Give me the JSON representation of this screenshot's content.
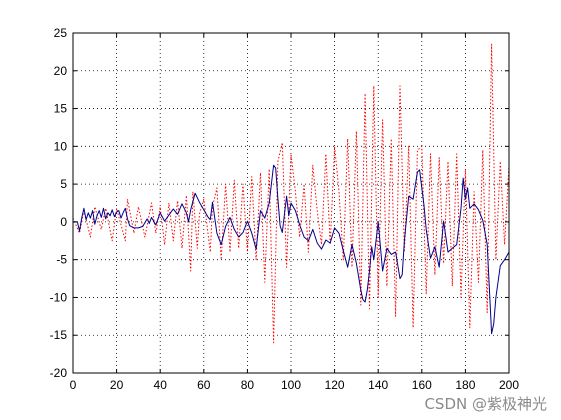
{
  "watermark": "CSDN @紫极神光",
  "chart_data": {
    "type": "line",
    "title": "",
    "xlabel": "",
    "ylabel": "",
    "xlim": [
      0,
      200
    ],
    "ylim": [
      -20,
      25
    ],
    "xticks": [
      0,
      20,
      40,
      60,
      80,
      100,
      120,
      140,
      160,
      180,
      200
    ],
    "yticks": [
      -20,
      -15,
      -10,
      -5,
      0,
      5,
      10,
      15,
      20,
      25
    ],
    "grid": true,
    "legend": "none",
    "series": [
      {
        "style": "solid",
        "color": "#00008b",
        "x": [
          0,
          2,
          3,
          4,
          5,
          6,
          7,
          8,
          9,
          10,
          11,
          12,
          13,
          14,
          15,
          16,
          17,
          18,
          19,
          20,
          21,
          22,
          23,
          24,
          25,
          26,
          28,
          30,
          32,
          34,
          35,
          36,
          38,
          40,
          42,
          44,
          46,
          48,
          50,
          52,
          53,
          54,
          56,
          57,
          58,
          60,
          62,
          63,
          64,
          66,
          68,
          70,
          72,
          74,
          76,
          78,
          80,
          82,
          84,
          86,
          88,
          90,
          92,
          93,
          94,
          95,
          96,
          98,
          99,
          100,
          102,
          104,
          106,
          108,
          110,
          112,
          114,
          116,
          118,
          120,
          122,
          124,
          126,
          128,
          130,
          132,
          133,
          134,
          135,
          136,
          137,
          138,
          140,
          142,
          144,
          146,
          148,
          150,
          151,
          152,
          154,
          156,
          158,
          159,
          160,
          161,
          162,
          164,
          166,
          168,
          170,
          172,
          174,
          176,
          178,
          179,
          180,
          181,
          182,
          184,
          186,
          188,
          190,
          192,
          193,
          194,
          196,
          198,
          200
        ],
        "y": [
          0,
          0,
          -1.2,
          0.5,
          1.8,
          0.3,
          1.2,
          0.5,
          1.5,
          -0.3,
          0.8,
          1.5,
          0.6,
          1.8,
          0.4,
          1.2,
          0.8,
          1.6,
          0.7,
          1.3,
          1.5,
          0.5,
          1.2,
          1.8,
          0.4,
          -0.5,
          -0.8,
          -0.8,
          -0.6,
          0.4,
          -0.2,
          0.6,
          -0.4,
          1.2,
          0.1,
          0.9,
          1.7,
          1.0,
          2.4,
          1.2,
          0.0,
          1.6,
          3.8,
          3.2,
          2.6,
          1.6,
          0.6,
          0.3,
          2.6,
          -1.5,
          -3.0,
          -0.6,
          0.6,
          -1.0,
          -2.0,
          -1.4,
          0.1,
          -1.5,
          -3.6,
          1.5,
          0.5,
          2.5,
          7.5,
          7.1,
          3.0,
          -0.5,
          -1.4,
          3.4,
          0.8,
          2.5,
          1.5,
          -0.4,
          -2.0,
          -2.5,
          -1.0,
          -2.8,
          -3.6,
          -2.4,
          -2.8,
          -0.8,
          -1.5,
          -3.8,
          -6.0,
          -3.0,
          -5.5,
          -9.0,
          -10.3,
          -10.6,
          -9.0,
          -6.5,
          -3.3,
          -5.0,
          0.0,
          -6.5,
          -3.5,
          -4.3,
          -4.0,
          -7.5,
          -7.0,
          -2.5,
          3.4,
          3.0,
          6.6,
          6.9,
          4.5,
          2.2,
          -1.0,
          -4.8,
          -3.3,
          -6.0,
          0.1,
          -4.0,
          -3.5,
          -3.0,
          1.8,
          5.8,
          3.0,
          4.5,
          1.8,
          2.4,
          1.6,
          0.2,
          -3.0,
          -14.8,
          -13.5,
          -10.0,
          -5.8,
          -5.0,
          -4.0
        ]
      },
      {
        "style": "dotted",
        "color": "#ff0000",
        "x": [
          0,
          3,
          5,
          8,
          10,
          13,
          15,
          18,
          20,
          24,
          25,
          28,
          30,
          33,
          36,
          38,
          40,
          42,
          44,
          46,
          48,
          50,
          52,
          54,
          55,
          57,
          58,
          60,
          63,
          64,
          66,
          68,
          70,
          72,
          74,
          76,
          78,
          80,
          82,
          84,
          86,
          88,
          90,
          92,
          94,
          96,
          98,
          100,
          102,
          104,
          106,
          108,
          110,
          112,
          114,
          116,
          118,
          120,
          122,
          124,
          126,
          128,
          130,
          132,
          134,
          136,
          138,
          140,
          142,
          144,
          146,
          148,
          150,
          152,
          154,
          156,
          158,
          160,
          162,
          164,
          166,
          168,
          170,
          172,
          174,
          176,
          178,
          180,
          182,
          184,
          186,
          188,
          190,
          192,
          194,
          196,
          198,
          200
        ],
        "y": [
          0.5,
          -1.5,
          1.5,
          -2.0,
          2.0,
          -1.0,
          1.8,
          -2.5,
          1.8,
          -2.5,
          3.0,
          -1.5,
          2.0,
          -2.0,
          2.5,
          -1.5,
          2.0,
          -3.0,
          2.5,
          -2.5,
          2.8,
          -3.5,
          3.5,
          -6.5,
          4.0,
          -3.5,
          1.0,
          3.0,
          -4.0,
          2.0,
          4.5,
          -5.0,
          5.0,
          -4.0,
          5.5,
          -3.5,
          5.0,
          -4.0,
          6.0,
          -5.0,
          6.5,
          -8.0,
          7.0,
          -16.0,
          8.0,
          10.5,
          -6.0,
          9.0,
          4.0,
          -2.0,
          5.0,
          -4.0,
          7.5,
          1.5,
          -3.0,
          9.0,
          -3.0,
          10.0,
          4.0,
          -5.0,
          11.0,
          -6.0,
          12.0,
          -11.0,
          17.0,
          -11.5,
          18.0,
          -10.0,
          13.5,
          -8.5,
          11.0,
          -12.5,
          18.0,
          -4.0,
          10.0,
          -14.0,
          9.5,
          10.0,
          -9.5,
          9.0,
          -7.0,
          8.5,
          -5.5,
          8.0,
          -8.5,
          9.0,
          -10.0,
          7.0,
          -14.0,
          4.0,
          -8.0,
          9.5,
          -12.0,
          23.5,
          -5.0,
          8.0,
          -3.0,
          7.5
        ]
      }
    ]
  }
}
